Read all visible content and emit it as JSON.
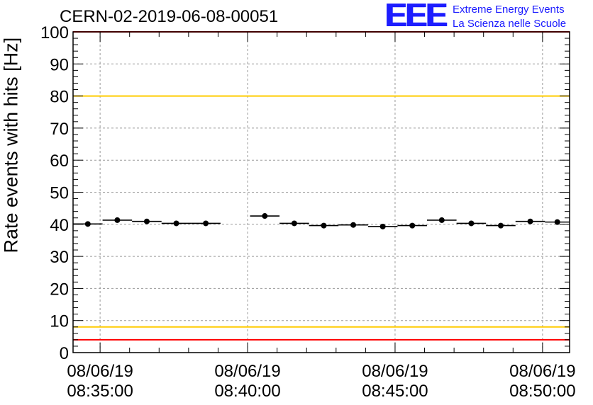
{
  "chart_data": {
    "type": "scatter",
    "title": "CERN-02-2019-06-08-00051",
    "ylabel": "Rate events with hits [Hz]",
    "xlabel": "",
    "ylim": [
      0,
      100
    ],
    "yticks": [
      0,
      10,
      20,
      30,
      40,
      50,
      60,
      70,
      80,
      90,
      100
    ],
    "ytick_labels": [
      "0",
      "10",
      "20",
      "30",
      "40",
      "50",
      "60",
      "70",
      "80",
      "90",
      "100"
    ],
    "xlim": [
      "08/06/19 08:34:05",
      "08/06/19 08:50:55"
    ],
    "xticks": [
      {
        "date": "08/06/19",
        "time": "08:35:00"
      },
      {
        "date": "08/06/19",
        "time": "08:40:00"
      },
      {
        "date": "08/06/19",
        "time": "08:45:00"
      },
      {
        "date": "08/06/19",
        "time": "08:50:00"
      }
    ],
    "grid": true,
    "reference_lines": [
      {
        "y": 100,
        "color": "#ff0000"
      },
      {
        "y": 80,
        "color": "#ffcc00"
      },
      {
        "y": 8,
        "color": "#ffcc00"
      },
      {
        "y": 4,
        "color": "#ff0000"
      }
    ],
    "series": [
      {
        "marker_color": "#000000",
        "points": [
          {
            "x": "08:34:05",
            "x_end": "08:35:05",
            "y": 40.1
          },
          {
            "x": "08:35:05",
            "x_end": "08:36:05",
            "y": 41.3
          },
          {
            "x": "08:36:05",
            "x_end": "08:37:05",
            "y": 40.9
          },
          {
            "x": "08:37:05",
            "x_end": "08:38:05",
            "y": 40.3
          },
          {
            "x": "08:38:05",
            "x_end": "08:39:05",
            "y": 40.3
          },
          {
            "x": "08:40:05",
            "x_end": "08:41:05",
            "y": 42.6
          },
          {
            "x": "08:41:05",
            "x_end": "08:42:05",
            "y": 40.3
          },
          {
            "x": "08:42:05",
            "x_end": "08:43:05",
            "y": 39.6
          },
          {
            "x": "08:43:05",
            "x_end": "08:44:05",
            "y": 39.8
          },
          {
            "x": "08:44:05",
            "x_end": "08:45:05",
            "y": 39.3
          },
          {
            "x": "08:45:05",
            "x_end": "08:46:05",
            "y": 39.6
          },
          {
            "x": "08:46:05",
            "x_end": "08:47:05",
            "y": 41.3
          },
          {
            "x": "08:47:05",
            "x_end": "08:48:05",
            "y": 40.3
          },
          {
            "x": "08:48:05",
            "x_end": "08:49:05",
            "y": 39.6
          },
          {
            "x": "08:49:05",
            "x_end": "08:50:05",
            "y": 40.9
          },
          {
            "x": "08:50:05",
            "x_end": "08:50:55",
            "y": 40.7
          }
        ]
      }
    ]
  },
  "logo": {
    "mark": "EEE",
    "line1": "Extreme Energy Events",
    "line2": "La Scienza nelle Scuole",
    "color": "#1a1aff"
  }
}
